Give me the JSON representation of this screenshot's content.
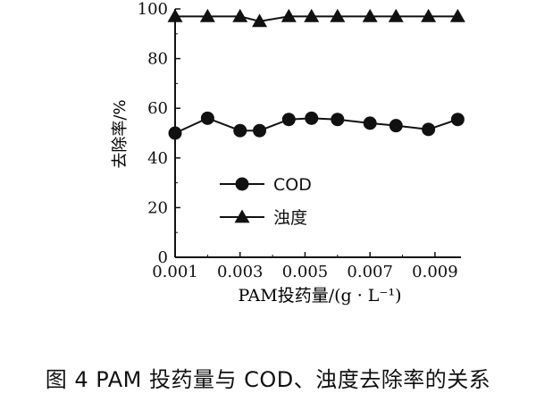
{
  "chart_data": {
    "type": "line",
    "x": [
      0.001,
      0.002,
      0.003,
      0.0036,
      0.0045,
      0.0052,
      0.006,
      0.007,
      0.0078,
      0.0088,
      0.0097
    ],
    "series": [
      {
        "name": "COD",
        "marker": "circle",
        "values": [
          50,
          56,
          51,
          51,
          55.5,
          56,
          55.5,
          54,
          53,
          51.5,
          55.5
        ]
      },
      {
        "name": "浊度",
        "marker": "triangle",
        "values": [
          97,
          97,
          97,
          95,
          97,
          97,
          97,
          97,
          97,
          97,
          97
        ]
      }
    ],
    "xlabel": "PAM投药量/(g · L⁻¹)",
    "ylabel": "去除率/%",
    "xlim": [
      0.001,
      0.0098
    ],
    "ylim": [
      0,
      100
    ],
    "xticks": [
      "0.001",
      "0.003",
      "0.005",
      "0.007",
      "0.009"
    ],
    "yticks": [
      "0",
      "20",
      "40",
      "60",
      "80",
      "100"
    ],
    "grid": false,
    "legend_position": "center-left",
    "colors": {
      "line": "#111111",
      "axis": "#111111"
    }
  },
  "caption": "图 4   PAM 投药量与 COD、浊度去除率的关系"
}
